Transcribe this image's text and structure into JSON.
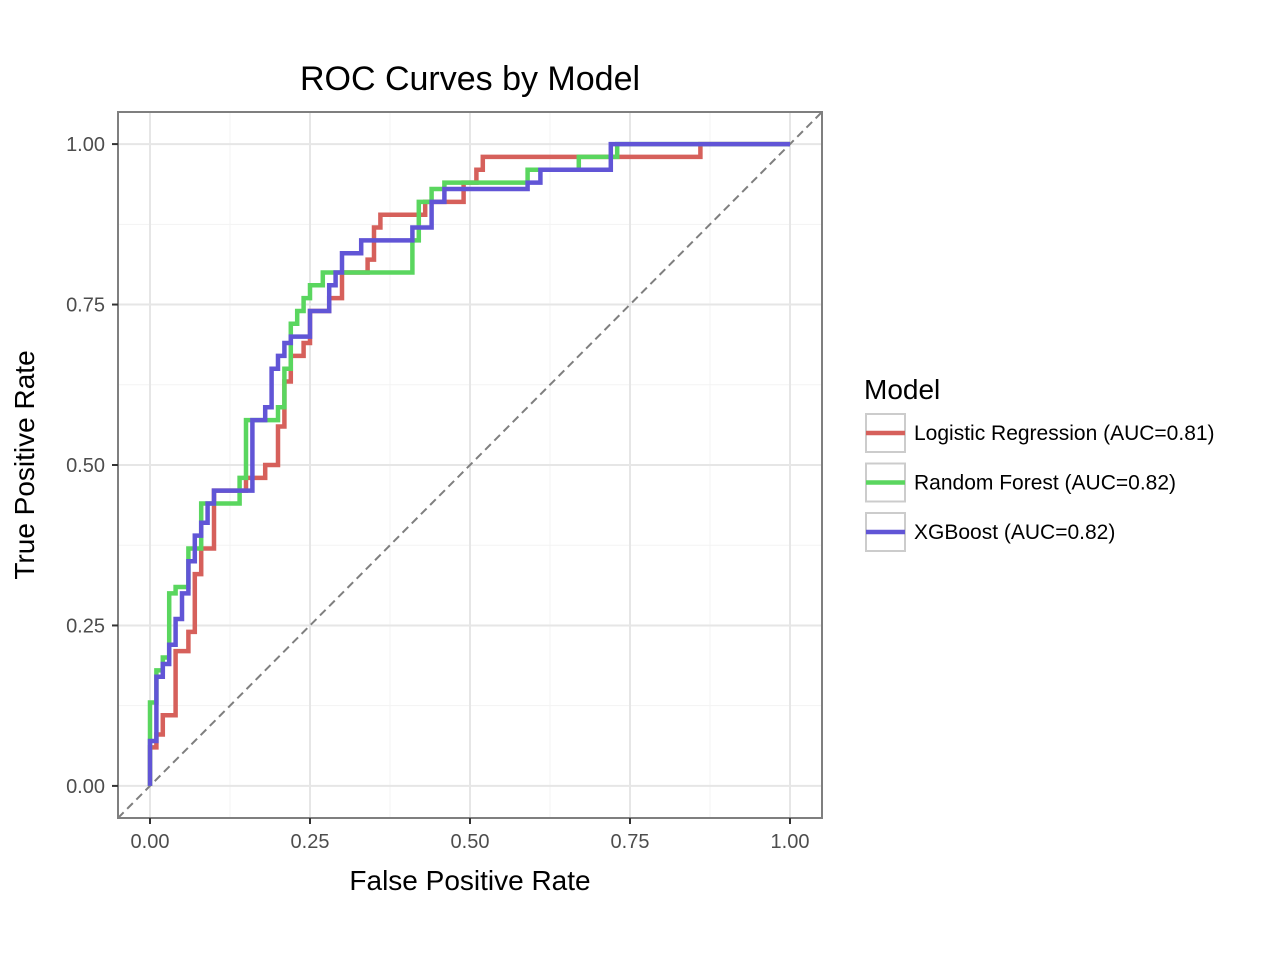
{
  "chart_data": {
    "type": "line",
    "title": "ROC Curves by Model",
    "xlabel": "False Positive Rate",
    "ylabel": "True Positive Rate",
    "xlim": [
      -0.05,
      1.05
    ],
    "ylim": [
      -0.05,
      1.05
    ],
    "xticks": [
      "0.00",
      "0.25",
      "0.50",
      "0.75",
      "1.00"
    ],
    "yticks": [
      "0.00",
      "0.25",
      "0.50",
      "0.75",
      "1.00"
    ],
    "grid": true,
    "legend": {
      "title": "Model",
      "position": "right"
    },
    "diagonal_reference": true,
    "series": [
      {
        "name": "Logistic Regression (AUC=0.81)",
        "color": "#d6605b",
        "x": [
          0.0,
          0.0,
          0.01,
          0.01,
          0.02,
          0.02,
          0.04,
          0.04,
          0.06,
          0.06,
          0.07,
          0.07,
          0.08,
          0.08,
          0.1,
          0.1,
          0.15,
          0.15,
          0.17,
          0.17,
          0.18,
          0.18,
          0.2,
          0.2,
          0.21,
          0.21,
          0.22,
          0.22,
          0.24,
          0.24,
          0.25,
          0.25,
          0.28,
          0.28,
          0.3,
          0.3,
          0.34,
          0.34,
          0.35,
          0.35,
          0.36,
          0.36,
          0.41,
          0.41,
          0.43,
          0.43,
          0.49,
          0.49,
          0.51,
          0.51,
          0.52,
          0.52,
          0.68,
          0.68,
          0.86,
          0.86,
          1.0
        ],
        "y": [
          0.0,
          0.06,
          0.06,
          0.08,
          0.08,
          0.11,
          0.11,
          0.21,
          0.21,
          0.24,
          0.24,
          0.33,
          0.33,
          0.37,
          0.37,
          0.46,
          0.46,
          0.48,
          0.48,
          0.48,
          0.48,
          0.5,
          0.5,
          0.56,
          0.56,
          0.63,
          0.63,
          0.67,
          0.67,
          0.69,
          0.69,
          0.74,
          0.74,
          0.76,
          0.76,
          0.8,
          0.8,
          0.82,
          0.82,
          0.87,
          0.87,
          0.89,
          0.89,
          0.89,
          0.89,
          0.91,
          0.91,
          0.94,
          0.94,
          0.96,
          0.96,
          0.98,
          0.98,
          0.98,
          0.98,
          1.0,
          1.0
        ]
      },
      {
        "name": "Random Forest (AUC=0.82)",
        "color": "#5ad65f",
        "x": [
          0.0,
          0.0,
          0.01,
          0.01,
          0.02,
          0.02,
          0.03,
          0.03,
          0.04,
          0.04,
          0.06,
          0.06,
          0.08,
          0.08,
          0.14,
          0.14,
          0.15,
          0.15,
          0.2,
          0.2,
          0.21,
          0.21,
          0.22,
          0.22,
          0.23,
          0.23,
          0.24,
          0.24,
          0.25,
          0.25,
          0.27,
          0.27,
          0.3,
          0.3,
          0.35,
          0.35,
          0.41,
          0.41,
          0.42,
          0.42,
          0.44,
          0.44,
          0.46,
          0.46,
          0.59,
          0.59,
          0.67,
          0.67,
          0.73,
          0.73,
          1.0
        ],
        "y": [
          0.0,
          0.13,
          0.13,
          0.18,
          0.18,
          0.2,
          0.2,
          0.3,
          0.3,
          0.31,
          0.31,
          0.37,
          0.37,
          0.44,
          0.44,
          0.48,
          0.48,
          0.57,
          0.57,
          0.59,
          0.59,
          0.65,
          0.65,
          0.72,
          0.72,
          0.74,
          0.74,
          0.76,
          0.76,
          0.78,
          0.78,
          0.8,
          0.8,
          0.8,
          0.8,
          0.8,
          0.8,
          0.85,
          0.85,
          0.91,
          0.91,
          0.93,
          0.93,
          0.94,
          0.94,
          0.96,
          0.96,
          0.98,
          0.98,
          1.0,
          1.0
        ]
      },
      {
        "name": "XGBoost (AUC=0.82)",
        "color": "#6155d6",
        "x": [
          0.0,
          0.0,
          0.01,
          0.01,
          0.02,
          0.02,
          0.03,
          0.03,
          0.04,
          0.04,
          0.05,
          0.05,
          0.06,
          0.06,
          0.07,
          0.07,
          0.08,
          0.08,
          0.09,
          0.09,
          0.1,
          0.1,
          0.16,
          0.16,
          0.18,
          0.18,
          0.19,
          0.19,
          0.2,
          0.2,
          0.21,
          0.21,
          0.22,
          0.22,
          0.25,
          0.25,
          0.28,
          0.28,
          0.29,
          0.29,
          0.3,
          0.3,
          0.33,
          0.33,
          0.41,
          0.41,
          0.44,
          0.44,
          0.46,
          0.46,
          0.59,
          0.59,
          0.61,
          0.61,
          0.72,
          0.72,
          1.0
        ],
        "y": [
          0.0,
          0.07,
          0.07,
          0.17,
          0.17,
          0.19,
          0.19,
          0.22,
          0.22,
          0.26,
          0.26,
          0.3,
          0.3,
          0.35,
          0.35,
          0.39,
          0.39,
          0.41,
          0.41,
          0.44,
          0.44,
          0.46,
          0.46,
          0.57,
          0.57,
          0.59,
          0.59,
          0.65,
          0.65,
          0.67,
          0.67,
          0.69,
          0.69,
          0.7,
          0.7,
          0.74,
          0.74,
          0.78,
          0.78,
          0.8,
          0.8,
          0.83,
          0.83,
          0.85,
          0.85,
          0.87,
          0.87,
          0.91,
          0.91,
          0.93,
          0.93,
          0.94,
          0.94,
          0.96,
          0.96,
          1.0,
          1.0
        ]
      }
    ]
  }
}
